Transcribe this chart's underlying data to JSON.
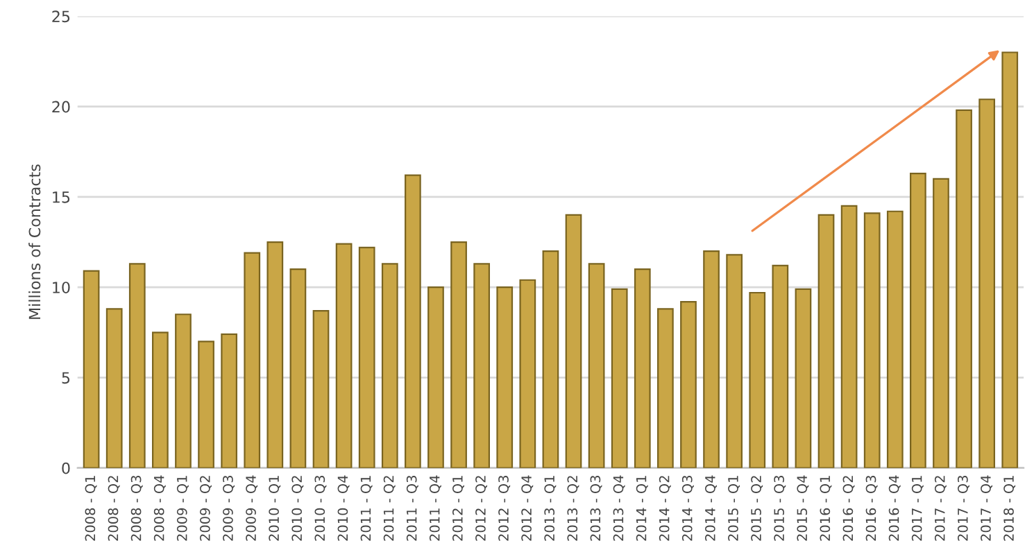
{
  "chart_data": {
    "type": "bar",
    "ylabel": "Millions of Contracts",
    "categories": [
      "2008 - Q1",
      "2008 - Q2",
      "2008 - Q3",
      "2008 - Q4",
      "2009 - Q1",
      "2009 - Q2",
      "2009 - Q3",
      "2009 - Q4",
      "2010 - Q1",
      "2010 - Q2",
      "2010 - Q3",
      "2010 - Q4",
      "2011 - Q1",
      "2011 - Q2",
      "2011 - Q3",
      "2011 - Q4",
      "2012 - Q1",
      "2012 - Q2",
      "2012 - Q3",
      "2012 - Q4",
      "2013 - Q1",
      "2013 - Q2",
      "2013 - Q3",
      "2013 - Q4",
      "2014 - Q1",
      "2014 - Q2",
      "2014 - Q3",
      "2014 - Q4",
      "2015 - Q1",
      "2015 - Q2",
      "2015 - Q3",
      "2015 - Q4",
      "2016 - Q1",
      "2016 - Q2",
      "2016 - Q3",
      "2016 - Q4",
      "2017 - Q1",
      "2017 - Q2",
      "2017 - Q3",
      "2017 - Q4",
      "2018 - Q1"
    ],
    "values": [
      10.9,
      8.8,
      11.3,
      7.5,
      8.5,
      7.0,
      7.4,
      11.9,
      12.5,
      11.0,
      8.7,
      12.4,
      12.2,
      11.3,
      16.2,
      10.0,
      12.5,
      11.3,
      10.0,
      10.4,
      12.0,
      14.0,
      11.3,
      9.9,
      11.0,
      8.8,
      9.2,
      12.0,
      11.8,
      9.7,
      11.2,
      9.9,
      14.0,
      14.5,
      14.1,
      14.2,
      16.3,
      16.0,
      19.8,
      20.4,
      23.0
    ],
    "color": "#c9a646",
    "ylim": [
      0,
      25
    ],
    "yticks": [
      0,
      5,
      10,
      15,
      20,
      25
    ],
    "grid": "y"
  }
}
